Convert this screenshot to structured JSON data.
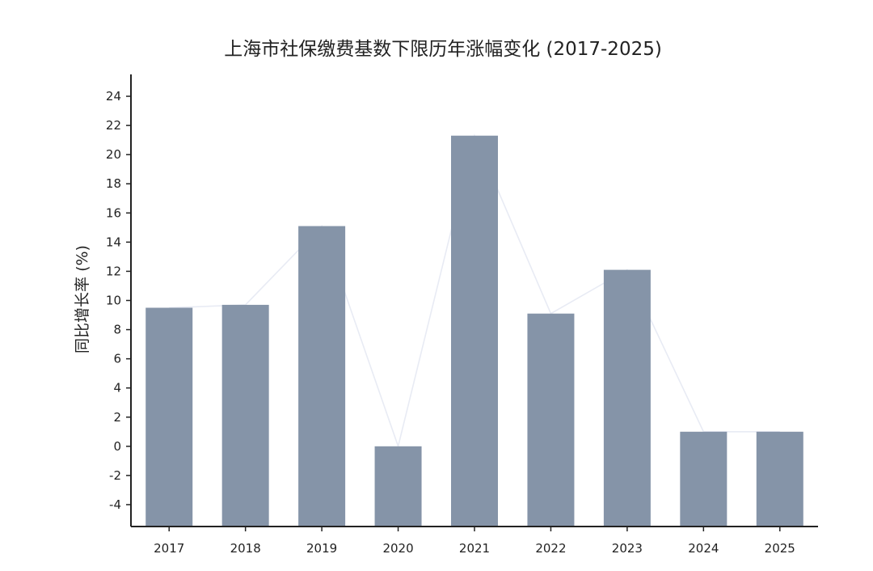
{
  "chart_data": {
    "type": "bar",
    "title": "上海市社保缴费基数下限历年涨幅变化 (2017-2025)",
    "xlabel": "",
    "ylabel": "同比增长率 (%)",
    "categories": [
      "2017",
      "2018",
      "2019",
      "2020",
      "2021",
      "2022",
      "2023",
      "2024",
      "2025"
    ],
    "values": [
      9.5,
      9.7,
      15.1,
      0,
      21.3,
      9.1,
      12.1,
      1.0,
      1.0
    ],
    "ylim": [
      -5.5,
      25.5
    ],
    "yticks": [
      -4,
      -2,
      0,
      2,
      4,
      6,
      8,
      10,
      12,
      14,
      16,
      18,
      20,
      22,
      24
    ],
    "yticklabels": [
      "-4",
      "-2",
      "0",
      "2",
      "4",
      "6",
      "8",
      "10",
      "12",
      "14",
      "16",
      "18",
      "20",
      "22",
      "24"
    ],
    "grid": false,
    "legend": "none",
    "overlay_line": true,
    "colors": {
      "bar": "#8594a8",
      "line": "#e8ebf4",
      "axis": "#222222",
      "text": "#222222"
    }
  }
}
